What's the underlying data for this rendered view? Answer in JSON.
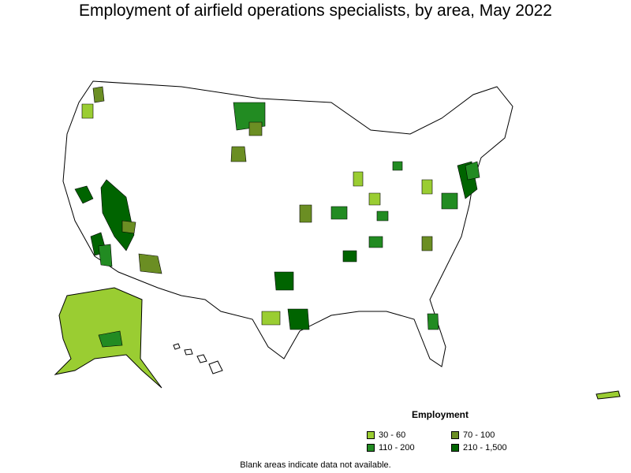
{
  "title": "Employment of airfield operations specialists, by area, May 2022",
  "legend": {
    "title": "Employment",
    "items": [
      {
        "label": "30 - 60",
        "color": "#9acd32"
      },
      {
        "label": "70 - 100",
        "color": "#6b8e23"
      },
      {
        "label": "110 - 200",
        "color": "#228b22"
      },
      {
        "label": "210 - 1,500",
        "color": "#006400"
      }
    ]
  },
  "note": "Blank areas indicate data not available."
}
